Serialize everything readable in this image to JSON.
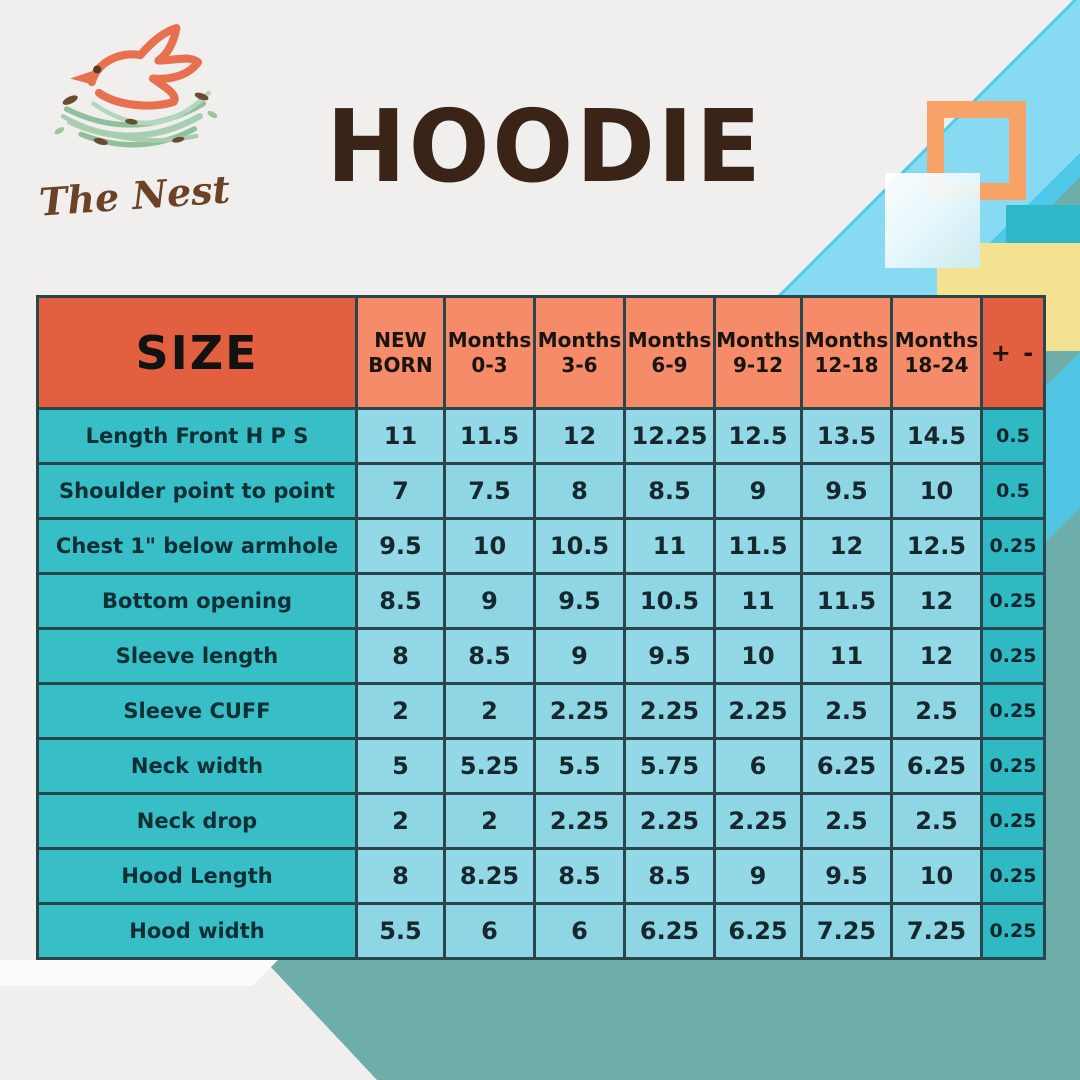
{
  "brand": {
    "name": "The Nest"
  },
  "title": "HOODIE",
  "table": {
    "size_header": "SIZE",
    "column_headers": [
      {
        "line1": "NEW",
        "line2": "BORN"
      },
      {
        "line1": "Months",
        "line2": "0-3"
      },
      {
        "line1": "Months",
        "line2": "3-6"
      },
      {
        "line1": "Months",
        "line2": "6-9"
      },
      {
        "line1": "Months",
        "line2": "9-12"
      },
      {
        "line1": "Months",
        "line2": "12-18"
      },
      {
        "line1": "Months",
        "line2": "18-24"
      }
    ],
    "tolerance_header": "+ -",
    "rows": [
      {
        "label": "Length Front H P S",
        "values": [
          "11",
          "11.5",
          "12",
          "12.25",
          "12.5",
          "13.5",
          "14.5"
        ],
        "tolerance": "0.5"
      },
      {
        "label": "Shoulder point to point",
        "values": [
          "7",
          "7.5",
          "8",
          "8.5",
          "9",
          "9.5",
          "10"
        ],
        "tolerance": "0.5"
      },
      {
        "label": "Chest 1\" below armhole",
        "values": [
          "9.5",
          "10",
          "10.5",
          "11",
          "11.5",
          "12",
          "12.5"
        ],
        "tolerance": "0.25"
      },
      {
        "label": "Bottom opening",
        "values": [
          "8.5",
          "9",
          "9.5",
          "10.5",
          "11",
          "11.5",
          "12"
        ],
        "tolerance": "0.25"
      },
      {
        "label": "Sleeve length",
        "values": [
          "8",
          "8.5",
          "9",
          "9.5",
          "10",
          "11",
          "12"
        ],
        "tolerance": "0.25"
      },
      {
        "label": "Sleeve CUFF",
        "values": [
          "2",
          "2",
          "2.25",
          "2.25",
          "2.25",
          "2.5",
          "2.5"
        ],
        "tolerance": "0.25"
      },
      {
        "label": "Neck width",
        "values": [
          "5",
          "5.25",
          "5.5",
          "5.75",
          "6",
          "6.25",
          "6.25"
        ],
        "tolerance": "0.25"
      },
      {
        "label": "Neck drop",
        "values": [
          "2",
          "2",
          "2.25",
          "2.25",
          "2.25",
          "2.5",
          "2.5"
        ],
        "tolerance": "0.25"
      },
      {
        "label": "Hood Length",
        "values": [
          "8",
          "8.25",
          "8.5",
          "8.5",
          "9",
          "9.5",
          "10"
        ],
        "tolerance": "0.25"
      },
      {
        "label": "Hood width",
        "values": [
          "5.5",
          "6",
          "6",
          "6.25",
          "6.25",
          "7.25",
          "7.25"
        ],
        "tolerance": "0.25"
      }
    ]
  },
  "colors": {
    "background": "#f0efed",
    "header_dark_orange": "#e2603f",
    "header_salmon": "#f58b69",
    "label_teal": "#38bec6",
    "cell_blue": "#8fd6e4",
    "tolerance_teal": "#2fb9c3",
    "table_border": "#2a464c",
    "title_brown": "#3a2418",
    "band_muted_teal": "#6dadaa",
    "band_cyan": "#4ec9ea",
    "square_orange": "#f7a368",
    "square_yellow": "#f2e292",
    "square_teal": "#2eb7c9",
    "logo_coral": "#e8704f",
    "logo_green": "#9cc49e"
  }
}
